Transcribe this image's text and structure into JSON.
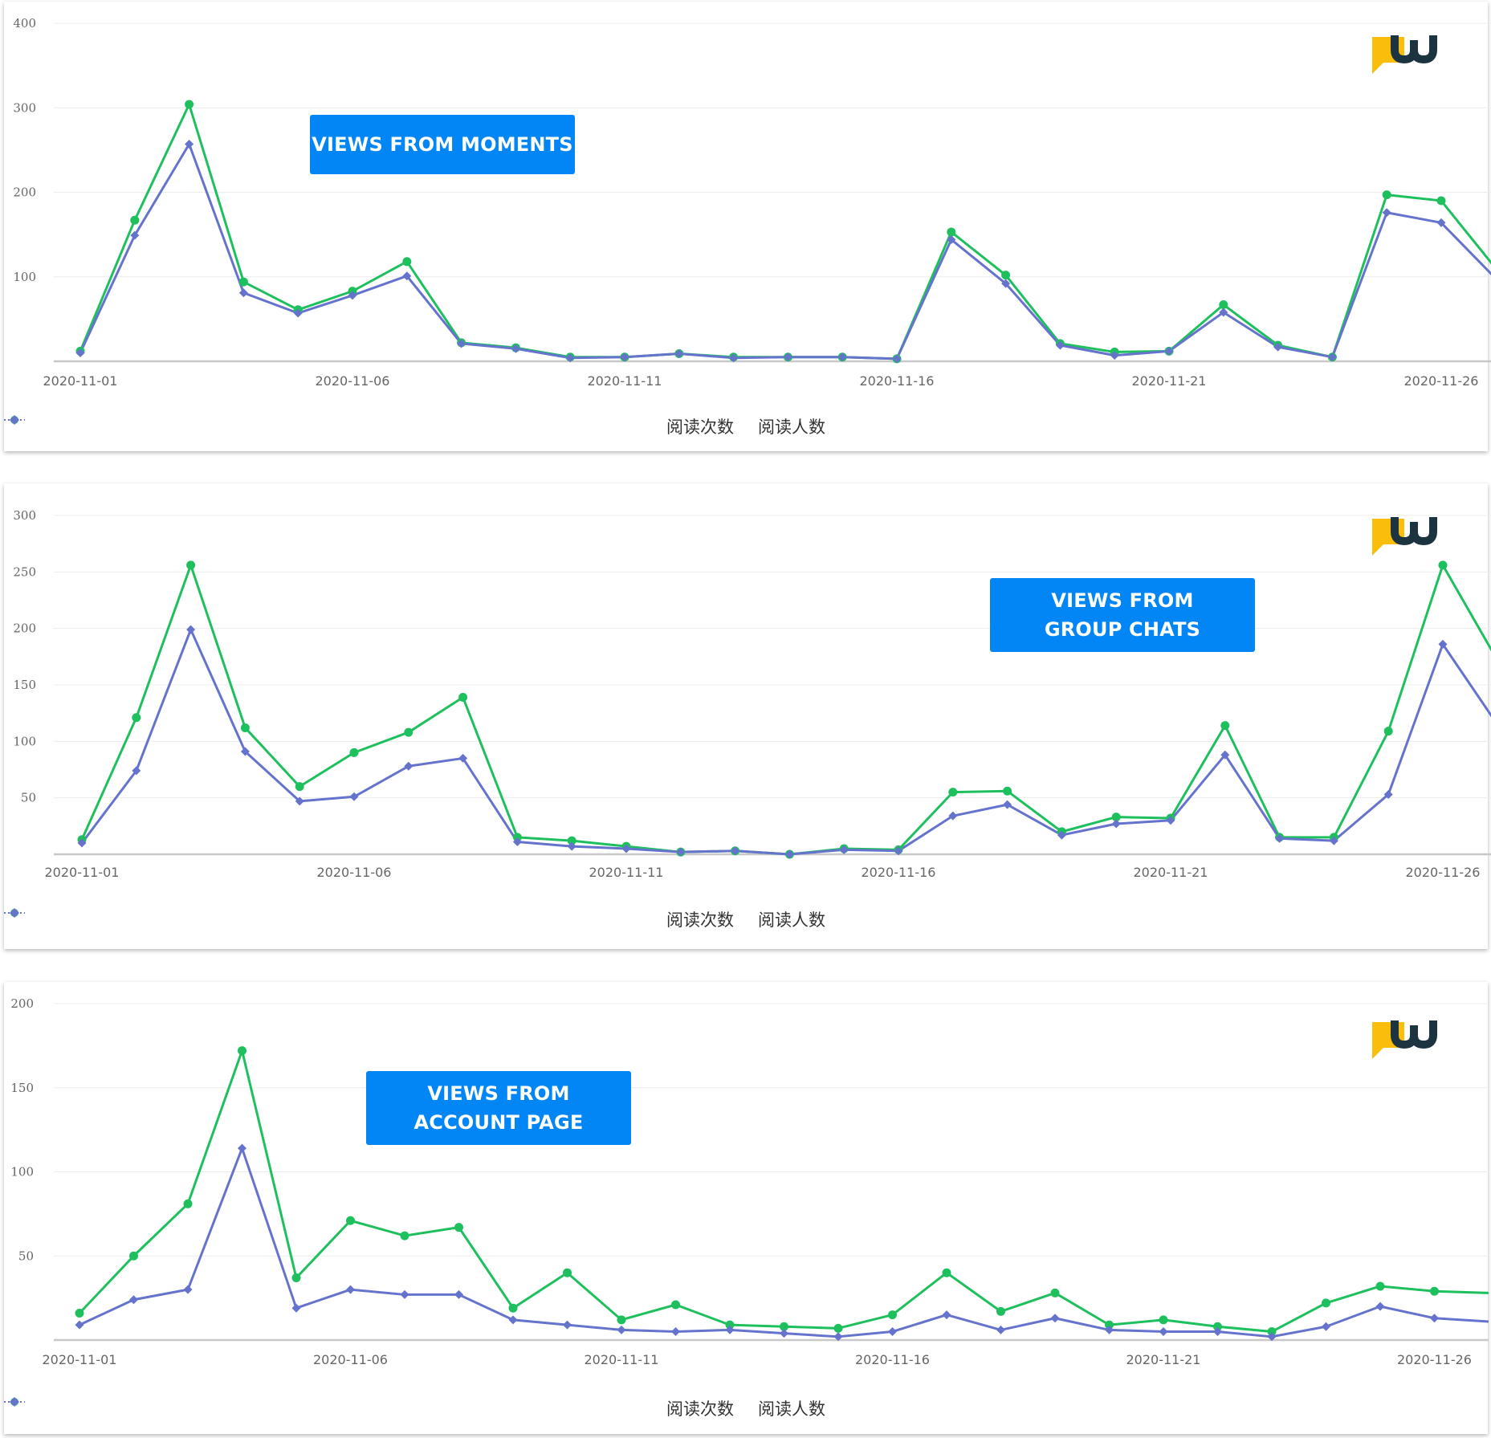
{
  "colors": {
    "series_views": "#1ec05e",
    "series_readers": "#6673cd",
    "callout_bg": "#0286f6",
    "logo_yellow": "#fbbd0c",
    "logo_dark": "#1c3340",
    "axis": "#c8c8c8",
    "grid": "#ececec",
    "tick_text": "#666666"
  },
  "logo": {
    "icon": "w-speech-bubble-logo"
  },
  "chart_data": [
    {
      "type": "line",
      "callout": "VIEWS FROM MOMENTS",
      "x": [
        "2020-11-01",
        "2020-11-02",
        "2020-11-03",
        "2020-11-04",
        "2020-11-05",
        "2020-11-06",
        "2020-11-07",
        "2020-11-08",
        "2020-11-09",
        "2020-11-10",
        "2020-11-11",
        "2020-11-12",
        "2020-11-13",
        "2020-11-14",
        "2020-11-15",
        "2020-11-16",
        "2020-11-17",
        "2020-11-18",
        "2020-11-19",
        "2020-11-20",
        "2020-11-21",
        "2020-11-22",
        "2020-11-23",
        "2020-11-24",
        "2020-11-25",
        "2020-11-26",
        "2020-11-27"
      ],
      "xtick_labels": [
        "2020-11-01",
        "2020-11-06",
        "2020-11-11",
        "2020-11-16",
        "2020-11-21",
        "2020-11-26"
      ],
      "yticks": [
        100,
        200,
        300,
        400
      ],
      "ylim": [
        0,
        400
      ],
      "grid": true,
      "legend_position": "bottom-center",
      "series": [
        {
          "name": "阅读次数",
          "marker": "circle",
          "values": [
            12,
            167,
            304,
            94,
            61,
            83,
            118,
            22,
            16,
            5,
            5,
            9,
            5,
            5,
            5,
            3,
            153,
            102,
            21,
            11,
            12,
            67,
            19,
            5,
            197,
            190,
            110
          ]
        },
        {
          "name": "阅读人数",
          "marker": "diamond",
          "values": [
            10,
            149,
            257,
            81,
            57,
            78,
            101,
            21,
            15,
            4,
            5,
            9,
            4,
            5,
            5,
            3,
            144,
            92,
            19,
            7,
            12,
            58,
            17,
            5,
            176,
            164,
            98
          ]
        }
      ]
    },
    {
      "type": "line",
      "callout": "VIEWS FROM\nGROUP CHATS",
      "x": [
        "2020-11-01",
        "2020-11-02",
        "2020-11-03",
        "2020-11-04",
        "2020-11-05",
        "2020-11-06",
        "2020-11-07",
        "2020-11-08",
        "2020-11-09",
        "2020-11-10",
        "2020-11-11",
        "2020-11-12",
        "2020-11-13",
        "2020-11-14",
        "2020-11-15",
        "2020-11-16",
        "2020-11-17",
        "2020-11-18",
        "2020-11-19",
        "2020-11-20",
        "2020-11-21",
        "2020-11-22",
        "2020-11-23",
        "2020-11-24",
        "2020-11-25",
        "2020-11-26",
        "2020-11-27"
      ],
      "xtick_labels": [
        "2020-11-01",
        "2020-11-06",
        "2020-11-11",
        "2020-11-16",
        "2020-11-21",
        "2020-11-26"
      ],
      "yticks": [
        50,
        100,
        150,
        200,
        250,
        300
      ],
      "ylim": [
        0,
        300
      ],
      "grid": true,
      "legend_position": "bottom-center",
      "series": [
        {
          "name": "阅读次数",
          "marker": "circle",
          "values": [
            13,
            121,
            256,
            112,
            60,
            90,
            108,
            139,
            15,
            12,
            7,
            2,
            3,
            0,
            5,
            4,
            55,
            56,
            20,
            33,
            32,
            114,
            15,
            15,
            109,
            256,
            172
          ]
        },
        {
          "name": "阅读人数",
          "marker": "diamond",
          "values": [
            10,
            74,
            199,
            91,
            47,
            51,
            78,
            85,
            11,
            7,
            5,
            2,
            3,
            0,
            4,
            3,
            34,
            44,
            17,
            27,
            30,
            88,
            14,
            12,
            53,
            186,
            115
          ]
        }
      ]
    },
    {
      "type": "line",
      "callout": "VIEWS FROM\nACCOUNT PAGE",
      "x": [
        "2020-11-01",
        "2020-11-02",
        "2020-11-03",
        "2020-11-04",
        "2020-11-05",
        "2020-11-06",
        "2020-11-07",
        "2020-11-08",
        "2020-11-09",
        "2020-11-10",
        "2020-11-11",
        "2020-11-12",
        "2020-11-13",
        "2020-11-14",
        "2020-11-15",
        "2020-11-16",
        "2020-11-17",
        "2020-11-18",
        "2020-11-19",
        "2020-11-20",
        "2020-11-21",
        "2020-11-22",
        "2020-11-23",
        "2020-11-24",
        "2020-11-25",
        "2020-11-26",
        "2020-11-27"
      ],
      "xtick_labels": [
        "2020-11-01",
        "2020-11-06",
        "2020-11-11",
        "2020-11-16",
        "2020-11-21",
        "2020-11-26"
      ],
      "yticks": [
        50,
        100,
        150,
        200
      ],
      "ylim": [
        0,
        200
      ],
      "grid": true,
      "legend_position": "bottom-center",
      "series": [
        {
          "name": "阅读次数",
          "marker": "circle",
          "values": [
            16,
            50,
            81,
            172,
            37,
            71,
            62,
            67,
            19,
            40,
            12,
            21,
            9,
            8,
            7,
            15,
            40,
            17,
            28,
            9,
            12,
            8,
            5,
            22,
            32,
            29,
            28
          ]
        },
        {
          "name": "阅读人数",
          "marker": "diamond",
          "values": [
            9,
            24,
            30,
            114,
            19,
            30,
            27,
            27,
            12,
            9,
            6,
            5,
            6,
            4,
            2,
            5,
            15,
            6,
            13,
            6,
            5,
            5,
            2,
            8,
            20,
            13,
            11
          ]
        }
      ]
    }
  ]
}
